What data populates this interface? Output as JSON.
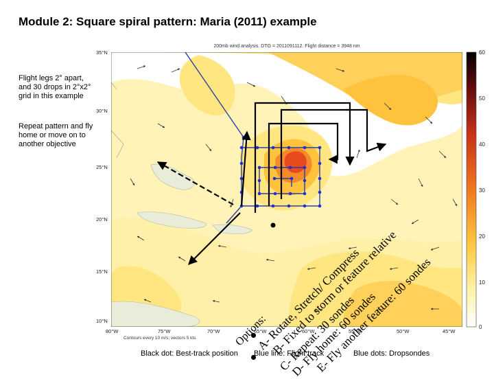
{
  "slide": {
    "title": "Module 2:  Square spiral pattern: Maria (2011) example",
    "notes": [
      "Flight legs 2° apart, and 30 drops in 2°x2° grid in this example",
      "Repeat pattern and fly home or move on to another objective"
    ]
  },
  "map": {
    "header": "200mb wind analysis. DTG = 2011091112. Flight distance = 3948 nm",
    "footer": "Contours every 10 m/s; vectors 5 kts",
    "lat_labels": [
      "35°N",
      "30°N",
      "25°N",
      "20°N",
      "15°N",
      "10°N"
    ],
    "lon_labels": [
      "80°W",
      "75°W",
      "70°W",
      "65°W",
      "60°W",
      "55°W",
      "50°W",
      "45°W"
    ],
    "colorbar_ticks": [
      "60",
      "50",
      "40",
      "30",
      "20",
      "10",
      "0"
    ],
    "colors": {
      "background": "#f5ecc0",
      "yellow": "#ffe680",
      "orange": "#ffc23c",
      "red": "#f26222",
      "track": "#2c3ea6",
      "drops": "#1e2fd6"
    }
  },
  "legend": {
    "black_dot": "Black dot: Best-track position",
    "blue_line": "Blue line: Flight track",
    "blue_dots": "Blue dots: Dropsondes"
  },
  "overlay": {
    "options_heading": "Options:",
    "option_a": "A- Rotate, Stretch/ Compress",
    "option_b": "B- Fixed to storm or feature relative",
    "option_c": "C- Repeat: 30 sondes",
    "option_d": "D- Fly home: 60 sondes",
    "option_e": "E- Fly another feature: 60 sondes"
  }
}
